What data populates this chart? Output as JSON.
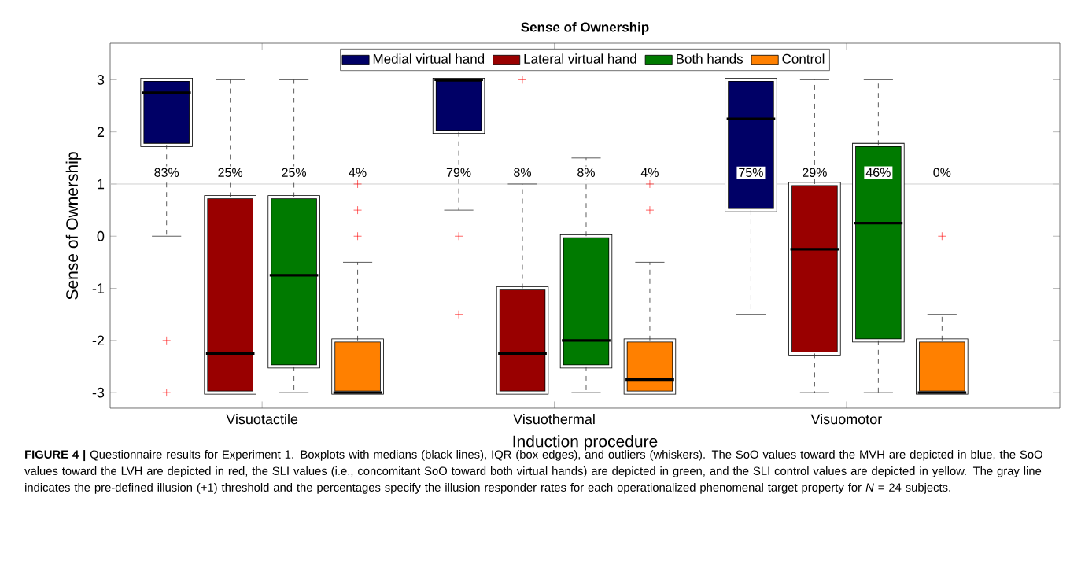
{
  "chart_data": {
    "type": "box",
    "title": "Sense of Ownership",
    "xlabel": "Induction procedure",
    "ylabel": "Sense of Ownership",
    "categories": [
      "Visuotactile",
      "Visuothermal",
      "Visuomotor"
    ],
    "ylim": [
      -3.3,
      3.7
    ],
    "yticks": [
      -3,
      -2,
      -1,
      0,
      1,
      2,
      3
    ],
    "legend": "top",
    "series": [
      {
        "name": "Medial virtual hand",
        "color": "#000066",
        "boxes": [
          {
            "low": 0,
            "q1": 1.75,
            "median": 2.75,
            "q3": 3,
            "high": 3,
            "outliers": [
              -2,
              -3
            ]
          },
          {
            "low": 0.5,
            "q1": 2,
            "median": 3,
            "q3": 3,
            "high": 3,
            "outliers": [
              0,
              -1.5
            ]
          },
          {
            "low": -1.5,
            "q1": 0.5,
            "median": 2.25,
            "q3": 3,
            "high": 3
          }
        ]
      },
      {
        "name": "Lateral virtual hand",
        "color": "#990000",
        "boxes": [
          {
            "low": -3,
            "q1": -3,
            "median": -2.25,
            "q3": 0.75,
            "high": 3
          },
          {
            "low": -3,
            "q1": -3,
            "median": -2.25,
            "q3": -1,
            "high": 1,
            "outliers": [
              3
            ]
          },
          {
            "low": -3,
            "q1": -2.25,
            "median": -0.25,
            "q3": 1,
            "high": 3
          }
        ]
      },
      {
        "name": "Both hands",
        "color": "#007a00",
        "boxes": [
          {
            "low": -3,
            "q1": -2.5,
            "median": -0.75,
            "q3": 0.75,
            "high": 3
          },
          {
            "low": -3,
            "q1": -2.5,
            "median": -2,
            "q3": 0,
            "high": 1.5
          },
          {
            "low": -3,
            "q1": -2,
            "median": 0.25,
            "q3": 1.75,
            "high": 3
          }
        ]
      },
      {
        "name": "Control",
        "color": "#ff8000",
        "boxes": [
          {
            "low": -3,
            "q1": -3,
            "median": -3,
            "q3": -2,
            "high": -0.5,
            "outliers": [
              0,
              0.5,
              1
            ]
          },
          {
            "low": -3,
            "q1": -3,
            "median": -2.75,
            "q3": -2,
            "high": -0.5,
            "outliers": [
              0.5,
              1
            ]
          },
          {
            "low": -3,
            "q1": -3,
            "median": -3,
            "q3": -2,
            "high": -1.5,
            "outliers": [
              0
            ]
          }
        ]
      }
    ],
    "ref_lines": [
      {
        "axis": "y",
        "value": 1,
        "color": "#d0d0d0"
      }
    ],
    "annotations": [
      "83%",
      "25%",
      "25%",
      "4%",
      "79%",
      "8%",
      "8%",
      "4%",
      "75%",
      "29%",
      "46%",
      "0%",
      "**FIGURE 4 |** Questionnaire results for Experiment 1. Boxplots with medians (black lines), IQR (box edges), and outliers (whiskers). The SoO values toward the MVH are depicted in blue, the SoO values toward the LVH are depicted in red, the SLI values (i.e., concomitant SoO toward both virtual hands) are depicted in green, and the SLI control values are depicted in yellow. The gray line indicates the pre-defined illusion (+1) threshold and the percentages specify the illusion responder rates for each operationalized phenomenal target property for *N* = 24 subjects."
    ]
  }
}
